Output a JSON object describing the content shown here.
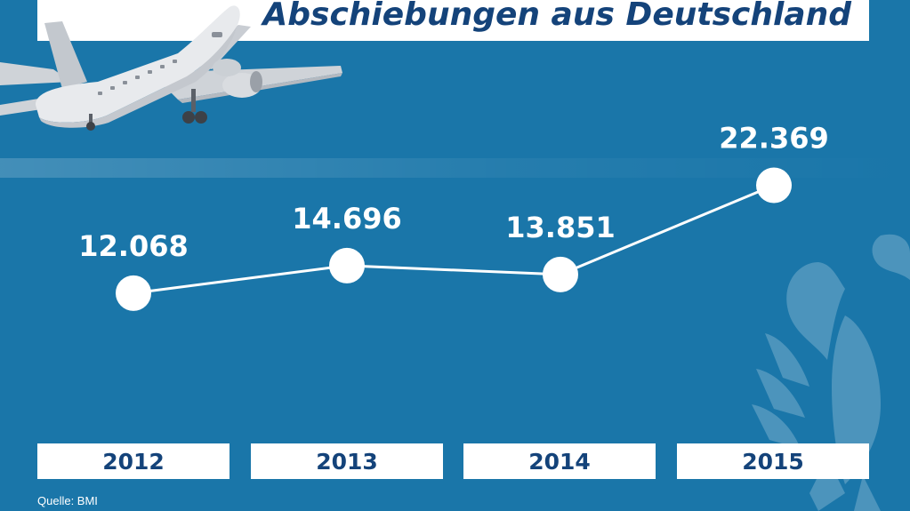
{
  "title": "Abschiebungen aus Deutschland",
  "source": "Quelle: BMI",
  "colors": {
    "background": "#1a76a9",
    "title": "#14437a",
    "line": "#ffffff",
    "points": "#ffffff"
  },
  "chart_data": {
    "type": "line",
    "title": "Abschiebungen aus Deutschland",
    "categories": [
      "2012",
      "2013",
      "2014",
      "2015"
    ],
    "values": [
      12068,
      14696,
      13851,
      22369
    ],
    "data_labels": [
      "12.068",
      "14.696",
      "13.851",
      "22.369"
    ],
    "xlabel": "",
    "ylabel": "",
    "grid": false,
    "legend": "none"
  },
  "decorations": [
    "airplane-illustration",
    "federal-eagle-watermark"
  ]
}
